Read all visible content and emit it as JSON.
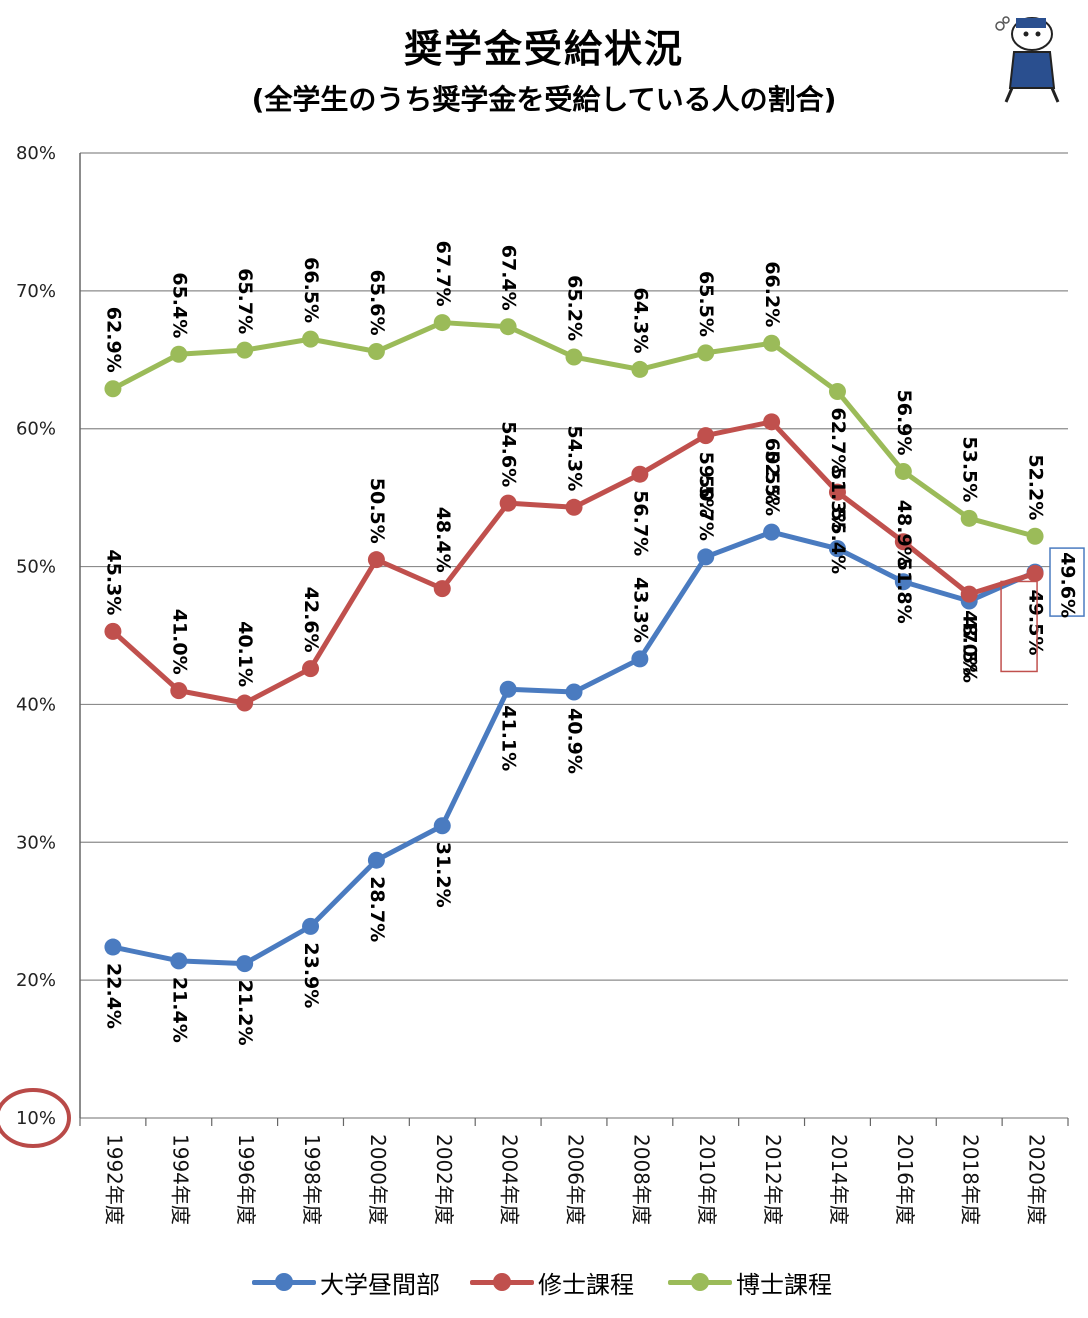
{
  "title": "奨学金受給状況",
  "subtitle": "(全学生のうち奨学金を受給している人の割合)",
  "mascot": {
    "icon": "mascot-character-icon"
  },
  "colors": {
    "blue": "#4a7bc0",
    "red": "#c0504d",
    "green": "#9bbb59",
    "grid": "#8c8c8c",
    "circle": "#b94a48"
  },
  "chart_data": {
    "type": "line",
    "categories": [
      "1992年度",
      "1994年度",
      "1996年度",
      "1998年度",
      "2000年度",
      "2002年度",
      "2004年度",
      "2006年度",
      "2008年度",
      "2010年度",
      "2012年度",
      "2014年度",
      "2016年度",
      "2018年度",
      "2020年度"
    ],
    "y_ticks": [
      "10%",
      "20%",
      "30%",
      "40%",
      "50%",
      "60%",
      "70%",
      "80%"
    ],
    "ylim": [
      10,
      80
    ],
    "grid": true,
    "legend_position": "bottom",
    "highlight_tick": "10%",
    "series": [
      {
        "name": "大学昼間部",
        "color": "#4a7bc0",
        "values": [
          22.4,
          21.4,
          21.2,
          23.9,
          28.7,
          31.2,
          41.1,
          40.9,
          43.3,
          50.7,
          52.5,
          51.3,
          48.9,
          47.5,
          49.6
        ],
        "labels": [
          "22.4%",
          "21.4%",
          "21.2%",
          "23.9%",
          "28.7%",
          "31.2%",
          "41.1%",
          "40.9%",
          "43.3%",
          "50.7%",
          "52.5%",
          "51.3%",
          "48.9%",
          "47.5%",
          "49.6%"
        ]
      },
      {
        "name": "修士課程",
        "color": "#c0504d",
        "values": [
          45.3,
          41.0,
          40.1,
          42.6,
          50.5,
          48.4,
          54.6,
          54.3,
          56.7,
          59.5,
          60.5,
          55.4,
          51.8,
          48.0,
          49.5
        ],
        "labels": [
          "45.3%",
          "41.0%",
          "40.1%",
          "42.6%",
          "50.5%",
          "48.4%",
          "54.6%",
          "54.3%",
          "56.7%",
          "59.5%",
          "60.5%",
          "55.4%",
          "51.8%",
          "48.0%",
          "49.5%"
        ]
      },
      {
        "name": "博士課程",
        "color": "#9bbb59",
        "values": [
          62.9,
          65.4,
          65.7,
          66.5,
          65.6,
          67.7,
          67.4,
          65.2,
          64.3,
          65.5,
          66.2,
          62.7,
          56.9,
          53.5,
          52.2
        ],
        "labels": [
          "62.9%",
          "65.4%",
          "65.7%",
          "66.5%",
          "65.6%",
          "67.7%",
          "67.4%",
          "65.2%",
          "64.3%",
          "65.5%",
          "66.2%",
          "62.7%",
          "56.9%",
          "53.5%",
          "52.2%"
        ]
      }
    ]
  }
}
